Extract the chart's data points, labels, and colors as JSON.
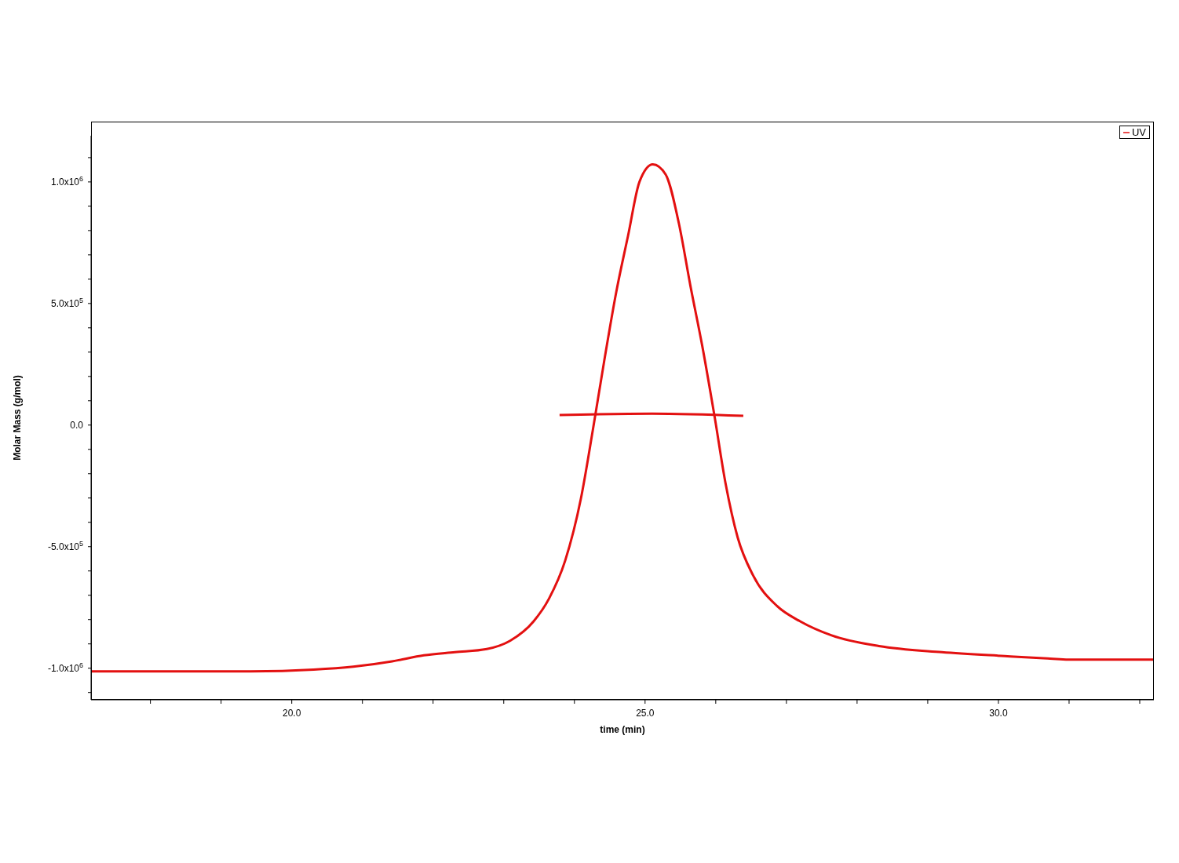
{
  "chart_data": {
    "type": "line",
    "xlabel": "time (min)",
    "ylabel": "Molar Mass (g/mol)",
    "xlim": [
      17.16,
      32.2
    ],
    "ylim": [
      -1130000,
      1190000
    ],
    "xticks": [
      {
        "value": 18,
        "label": null
      },
      {
        "value": 19,
        "label": null
      },
      {
        "value": 20,
        "label": "20.0"
      },
      {
        "value": 21,
        "label": null
      },
      {
        "value": 22,
        "label": null
      },
      {
        "value": 23,
        "label": null
      },
      {
        "value": 24,
        "label": null
      },
      {
        "value": 25,
        "label": "25.0"
      },
      {
        "value": 26,
        "label": null
      },
      {
        "value": 27,
        "label": null
      },
      {
        "value": 28,
        "label": null
      },
      {
        "value": 29,
        "label": null
      },
      {
        "value": 30,
        "label": "30.0"
      },
      {
        "value": 31,
        "label": null
      },
      {
        "value": 32,
        "label": null
      }
    ],
    "yticks": [
      {
        "value": -1100000,
        "label": null
      },
      {
        "value": -1000000,
        "label": "-1.0x10$^{6}$"
      },
      {
        "value": -900000,
        "label": null
      },
      {
        "value": -800000,
        "label": null
      },
      {
        "value": -700000,
        "label": null
      },
      {
        "value": -600000,
        "label": null
      },
      {
        "value": -500000,
        "label": "-5.0x10$^{5}$"
      },
      {
        "value": -400000,
        "label": null
      },
      {
        "value": -300000,
        "label": null
      },
      {
        "value": -200000,
        "label": null
      },
      {
        "value": -100000,
        "label": null
      },
      {
        "value": 0,
        "label": "0.0"
      },
      {
        "value": 100000,
        "label": null
      },
      {
        "value": 200000,
        "label": null
      },
      {
        "value": 300000,
        "label": null
      },
      {
        "value": 400000,
        "label": null
      },
      {
        "value": 500000,
        "label": "5.0x10$^{5}$"
      },
      {
        "value": 600000,
        "label": null
      },
      {
        "value": 700000,
        "label": null
      },
      {
        "value": 800000,
        "label": null
      },
      {
        "value": 900000,
        "label": null
      },
      {
        "value": 1000000,
        "label": "1.0x10$^{6}$"
      },
      {
        "value": 1100000,
        "label": null
      }
    ],
    "legend": "top right",
    "marker": "none",
    "line_style": "solid",
    "series": [
      {
        "name": "UV",
        "color": "#e31010",
        "x": [
          17.16,
          19.42,
          20.31,
          20.87,
          21.42,
          21.87,
          22.31,
          22.76,
          23.09,
          23.42,
          23.64,
          23.87,
          24.09,
          24.26,
          24.42,
          24.59,
          24.76,
          24.92,
          25.11,
          25.29,
          25.48,
          25.64,
          25.81,
          25.98,
          26.14,
          26.31,
          26.53,
          26.87,
          27.2,
          27.64,
          28.31,
          29.2,
          30.09,
          30.64,
          31.09,
          32.2
        ],
        "values": [
          -1013000,
          -1013000,
          -1006000,
          -994000,
          -972000,
          -947000,
          -934000,
          -921000,
          -887000,
          -808000,
          -714000,
          -557000,
          -305000,
          -22000,
          261000,
          544000,
          780000,
          1000000,
          1072000,
          1031000,
          827000,
          575000,
          324000,
          41000,
          -242000,
          -462000,
          -619000,
          -745000,
          -808000,
          -865000,
          -909000,
          -934000,
          -950000,
          -959000,
          -965000,
          -965000
        ]
      },
      {
        "color": "#e31010",
        "x": [
          23.79,
          25.1,
          26.39
        ],
        "values": [
          41000,
          47000,
          38000
        ]
      }
    ]
  }
}
